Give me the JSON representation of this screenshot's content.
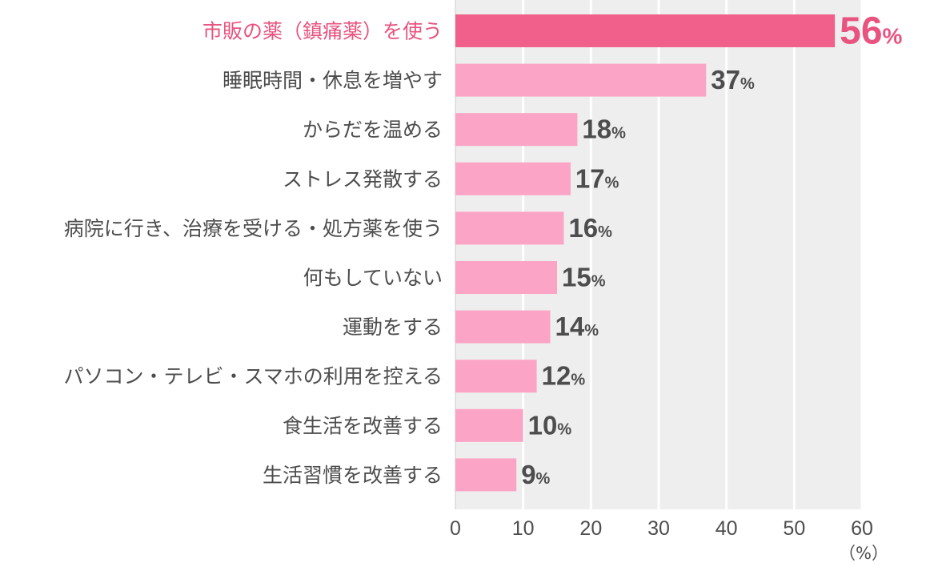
{
  "chart_data": {
    "type": "bar",
    "orientation": "horizontal",
    "categories": [
      "市販の薬（鎮痛薬）を使う",
      "睡眠時間・休息を増やす",
      "からだを温める",
      "ストレス発散する",
      "病院に行き、治療を受ける・処方薬を使う",
      "何もしていない",
      "運動をする",
      "パソコン・テレビ・スマホの利用を控える",
      "食生活を改善する",
      "生活習慣を改善する"
    ],
    "values": [
      56,
      37,
      18,
      17,
      16,
      15,
      14,
      12,
      10,
      9
    ],
    "value_labels": [
      "56",
      "37",
      "18",
      "17",
      "16",
      "15",
      "14",
      "12",
      "10",
      "9"
    ],
    "value_suffix": "%",
    "highlight_index": 0,
    "xlim": [
      0,
      60
    ],
    "xticks": [
      "0",
      "10",
      "20",
      "30",
      "40",
      "50",
      "60"
    ],
    "xticks_values": [
      0,
      10,
      20,
      30,
      40,
      50,
      60
    ],
    "unit_label": "（%）",
    "grid": true,
    "colors": {
      "bar": "#fba4c6",
      "bar_highlight": "#f0608b",
      "highlight_text": "#e8537f",
      "text": "#4d4d4d",
      "plot_bg": "#eeeeee",
      "gridline": "#ffffff"
    }
  }
}
